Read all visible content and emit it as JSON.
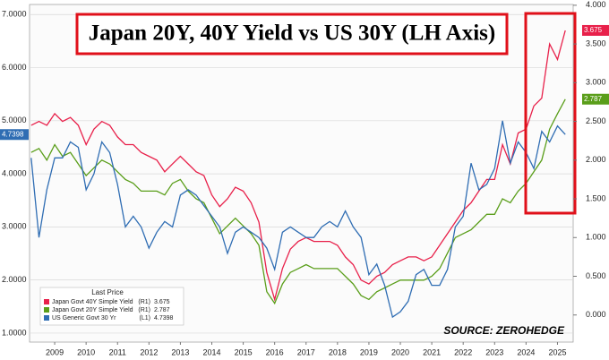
{
  "chart_data": {
    "type": "line",
    "title": "Japan 20Y, 40Y Yield vs US 30Y (LH Axis)",
    "source": "SOURCE: ZEROHEDGE",
    "legend_title": "Last Price",
    "x": [
      2008.75,
      2009,
      2009.25,
      2009.5,
      2009.75,
      2010,
      2010.25,
      2010.5,
      2010.75,
      2011,
      2011.25,
      2011.5,
      2011.75,
      2012,
      2012.25,
      2012.5,
      2012.75,
      2013,
      2013.25,
      2013.5,
      2013.75,
      2014,
      2014.25,
      2014.5,
      2014.75,
      2015,
      2015.25,
      2015.5,
      2015.75,
      2016,
      2016.25,
      2016.5,
      2016.75,
      2017,
      2017.25,
      2017.5,
      2017.75,
      2018,
      2018.25,
      2018.5,
      2018.75,
      2019,
      2019.25,
      2019.5,
      2019.75,
      2020,
      2020.25,
      2020.5,
      2020.75,
      2021,
      2021.25,
      2021.5,
      2021.75,
      2022,
      2022.25,
      2022.5,
      2022.75,
      2023,
      2023.25,
      2023.5,
      2023.75,
      2024,
      2024.25,
      2024.5,
      2024.75,
      2025,
      2025.25,
      2025.5,
      2025.75
    ],
    "series": [
      {
        "name": "Japan Govt 40Y Simple Yield",
        "axis_tag": "(R1)",
        "axis": "y2",
        "color": "#e8204a",
        "values": [
          2.45,
          2.5,
          2.45,
          2.6,
          2.5,
          2.55,
          2.45,
          2.2,
          2.4,
          2.5,
          2.45,
          2.3,
          2.2,
          2.2,
          2.1,
          2.05,
          2.0,
          1.85,
          1.95,
          2.05,
          1.95,
          1.85,
          1.8,
          1.55,
          1.4,
          1.5,
          1.65,
          1.6,
          1.45,
          1.2,
          0.55,
          0.2,
          0.6,
          0.85,
          0.95,
          1.0,
          0.95,
          0.95,
          0.95,
          0.9,
          0.75,
          0.65,
          0.45,
          0.4,
          0.5,
          0.55,
          0.65,
          0.7,
          0.75,
          0.75,
          0.7,
          0.75,
          0.9,
          1.05,
          1.2,
          1.35,
          1.45,
          1.6,
          1.75,
          1.75,
          2.2,
          1.95,
          2.35,
          2.4,
          2.7,
          2.8,
          3.5,
          3.3,
          3.675
        ]
      },
      {
        "name": "Japan Govt 20Y Simple Yield",
        "axis_tag": "(R1)",
        "axis": "y2",
        "color": "#5a9e1a",
        "values": [
          2.1,
          2.15,
          2.0,
          2.2,
          2.05,
          2.1,
          1.95,
          1.8,
          1.9,
          2.0,
          1.95,
          1.85,
          1.75,
          1.7,
          1.6,
          1.6,
          1.6,
          1.55,
          1.7,
          1.75,
          1.6,
          1.5,
          1.45,
          1.25,
          1.05,
          1.15,
          1.25,
          1.15,
          1.05,
          0.9,
          0.3,
          0.15,
          0.4,
          0.55,
          0.6,
          0.65,
          0.6,
          0.6,
          0.6,
          0.6,
          0.5,
          0.4,
          0.25,
          0.2,
          0.3,
          0.35,
          0.4,
          0.45,
          0.45,
          0.45,
          0.45,
          0.5,
          0.6,
          0.8,
          1.0,
          1.05,
          1.1,
          1.2,
          1.3,
          1.3,
          1.5,
          1.45,
          1.6,
          1.7,
          1.85,
          2.0,
          2.4,
          2.6,
          2.787
        ]
      },
      {
        "name": "US Generic Govt 30 Yr",
        "axis_tag": "(L1)",
        "axis": "y",
        "color": "#2f6db3",
        "values": [
          4.3,
          2.8,
          3.7,
          4.3,
          4.3,
          4.6,
          4.5,
          3.7,
          4.0,
          4.6,
          4.4,
          3.8,
          3.0,
          3.2,
          3.0,
          2.6,
          2.9,
          3.1,
          3.0,
          3.6,
          3.7,
          3.6,
          3.4,
          3.2,
          3.0,
          2.5,
          2.9,
          3.0,
          2.9,
          2.8,
          2.6,
          2.2,
          2.9,
          3.0,
          2.9,
          2.8,
          2.8,
          3.0,
          3.1,
          3.0,
          3.3,
          3.0,
          2.8,
          2.1,
          2.3,
          1.9,
          1.3,
          1.4,
          1.6,
          2.1,
          2.2,
          1.9,
          1.9,
          2.2,
          3.0,
          3.2,
          4.2,
          3.7,
          3.8,
          4.1,
          5.0,
          4.2,
          4.6,
          4.4,
          4.1,
          4.8,
          4.6,
          4.9,
          4.7398
        ]
      }
    ],
    "xlim": [
      2008.7,
      2026.0
    ],
    "xticks": [
      {
        "value": 2009.5,
        "label": "2009"
      },
      {
        "value": 2010.5,
        "label": "2010"
      },
      {
        "value": 2011.5,
        "label": "2011"
      },
      {
        "value": 2012.5,
        "label": "2012"
      },
      {
        "value": 2013.5,
        "label": "2013"
      },
      {
        "value": 2014.5,
        "label": "2014"
      },
      {
        "value": 2015.5,
        "label": "2015"
      },
      {
        "value": 2016.5,
        "label": "2016"
      },
      {
        "value": 2017.5,
        "label": "2017"
      },
      {
        "value": 2018.5,
        "label": "2018"
      },
      {
        "value": 2019.5,
        "label": "2019"
      },
      {
        "value": 2020.5,
        "label": "2020"
      },
      {
        "value": 2021.5,
        "label": "2021"
      },
      {
        "value": 2022.5,
        "label": "2022"
      },
      {
        "value": 2023.5,
        "label": "2023"
      },
      {
        "value": 2024.5,
        "label": "2024"
      },
      {
        "value": 2025.5,
        "label": "2025"
      }
    ],
    "ylim": [
      0.83,
      7.19
    ],
    "yticks": [
      {
        "value": 1,
        "label": "1.0000"
      },
      {
        "value": 2,
        "label": "2.0000"
      },
      {
        "value": 3,
        "label": "3.0000"
      },
      {
        "value": 4,
        "label": "4.0000"
      },
      {
        "value": 5,
        "label": "5.0000"
      },
      {
        "value": 6,
        "label": "6.0000"
      },
      {
        "value": 7,
        "label": "7.0000"
      }
    ],
    "y2lim": [
      -0.35,
      4.01
    ],
    "y2ticks": [
      {
        "value": 0,
        "label": "0.000"
      },
      {
        "value": 0.5,
        "label": "0.500"
      },
      {
        "value": 1,
        "label": "1.000"
      },
      {
        "value": 1.5,
        "label": "1.500"
      },
      {
        "value": 2,
        "label": "2.000"
      },
      {
        "value": 2.5,
        "label": "2.500"
      },
      {
        "value": 3,
        "label": "3.000"
      },
      {
        "value": 3.5,
        "label": "3.500"
      },
      {
        "value": 4,
        "label": "4.000"
      }
    ],
    "grid": true
  }
}
